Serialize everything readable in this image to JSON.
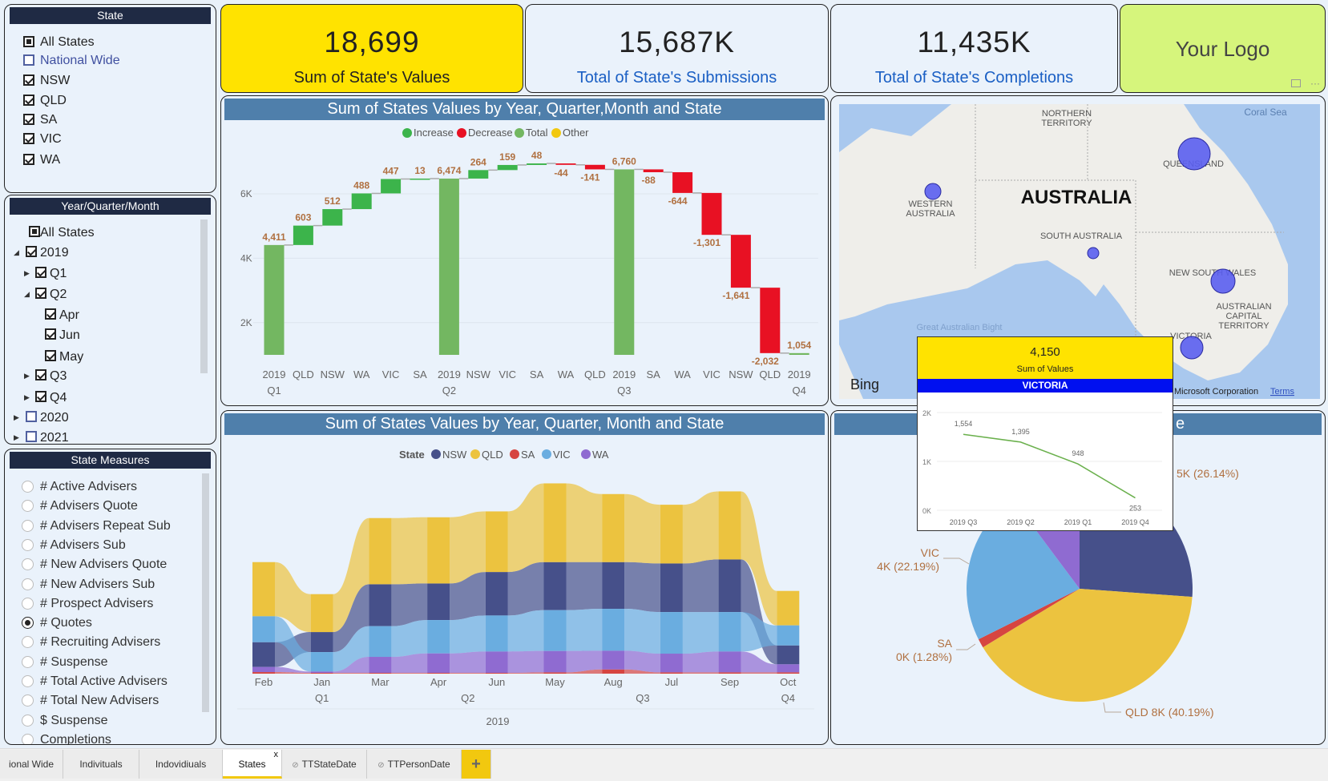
{
  "state_slicer": {
    "title": "State",
    "items": [
      {
        "label": "All States",
        "state": "part"
      },
      {
        "label": "National Wide",
        "state": "empty"
      },
      {
        "label": "NSW",
        "state": "on"
      },
      {
        "label": "QLD",
        "state": "on"
      },
      {
        "label": "SA",
        "state": "on"
      },
      {
        "label": "VIC",
        "state": "on"
      },
      {
        "label": "WA",
        "state": "on"
      }
    ]
  },
  "date_slicer": {
    "title": "Year/Quarter/Month",
    "items": [
      {
        "label": "All States",
        "state": "part",
        "level": 0,
        "arrow": ""
      },
      {
        "label": "2019",
        "state": "on",
        "level": 0,
        "arrow": "◢"
      },
      {
        "label": "Q1",
        "state": "on",
        "level": 1,
        "arrow": "▶"
      },
      {
        "label": "Q2",
        "state": "on",
        "level": 1,
        "arrow": "◢"
      },
      {
        "label": "Apr",
        "state": "on",
        "level": 2,
        "arrow": ""
      },
      {
        "label": "Jun",
        "state": "on",
        "level": 2,
        "arrow": ""
      },
      {
        "label": "May",
        "state": "on",
        "level": 2,
        "arrow": ""
      },
      {
        "label": "Q3",
        "state": "on",
        "level": 1,
        "arrow": "▶"
      },
      {
        "label": "Q4",
        "state": "on",
        "level": 1,
        "arrow": "▶"
      },
      {
        "label": "2020",
        "state": "empty",
        "level": 0,
        "arrow": "▶"
      },
      {
        "label": "2021",
        "state": "empty",
        "level": 0,
        "arrow": "▶"
      }
    ]
  },
  "measures_slicer": {
    "title": "State Measures",
    "selected": "# Quotes",
    "items": [
      "# Active Advisers",
      "# Advisers Quote",
      "# Advisers Repeat Sub",
      "# Advisers Sub",
      "# New Advisers Quote",
      "# New Advisers Sub",
      "# Prospect Advisers",
      "# Quotes",
      "# Recruiting Advisers",
      "# Suspense",
      "# Total Active Advisers",
      "# Total New Advisers",
      "$ Suspense",
      "Completions"
    ]
  },
  "kpis": [
    {
      "value": "18,699",
      "label": "Sum of State's Values",
      "bg": "#ffe300"
    },
    {
      "value": "15,687K",
      "label": "Total of State's Submissions",
      "bg": "#eaf2fb"
    },
    {
      "value": "11,435K",
      "label": "Total of State's Completions",
      "bg": "#eaf2fb"
    }
  ],
  "logo": {
    "text": "Your Logo",
    "bg": "#d6f57c"
  },
  "colors": {
    "increase": "#3cb44b",
    "decrease": "#e81123",
    "total": "#73b761",
    "other": "#f2c80f",
    "header": "#4f7fab",
    "nsw": "#46508a",
    "qld": "#ecc33f",
    "sa": "#d64541",
    "vic": "#6aade0",
    "wa": "#8f6bd1"
  },
  "chart_data": [
    {
      "type": "waterfall",
      "title": "Sum of States Values by Year, Quarter,Month and State",
      "legend": [
        "Increase",
        "Decrease",
        "Total",
        "Other"
      ],
      "yticks": [
        "2K",
        "4K",
        "6K"
      ],
      "ylim": [
        1000,
        7000
      ],
      "categories": [
        {
          "label": "2019",
          "sub": "Q1",
          "kind": "total",
          "value": 4411,
          "text": "4,411"
        },
        {
          "label": "QLD",
          "kind": "delta",
          "value": 603,
          "text": "603"
        },
        {
          "label": "NSW",
          "kind": "delta",
          "value": 512,
          "text": "512"
        },
        {
          "label": "WA",
          "kind": "delta",
          "value": 488,
          "text": "488"
        },
        {
          "label": "VIC",
          "kind": "delta",
          "value": 447,
          "text": "447"
        },
        {
          "label": "SA",
          "kind": "delta",
          "value": 13,
          "text": "13"
        },
        {
          "label": "2019",
          "sub": "Q2",
          "kind": "total",
          "value": 6474,
          "text": "6,474"
        },
        {
          "label": "NSW",
          "kind": "delta",
          "value": 264,
          "text": "264"
        },
        {
          "label": "VIC",
          "kind": "delta",
          "value": 159,
          "text": "159"
        },
        {
          "label": "SA",
          "kind": "delta",
          "value": 48,
          "text": "48"
        },
        {
          "label": "WA",
          "kind": "delta",
          "value": -44,
          "text": "-44"
        },
        {
          "label": "QLD",
          "kind": "delta",
          "value": -141,
          "text": "-141"
        },
        {
          "label": "2019",
          "sub": "Q3",
          "kind": "total",
          "value": 6760,
          "text": "6,760"
        },
        {
          "label": "SA",
          "kind": "delta",
          "value": -88,
          "text": "-88"
        },
        {
          "label": "WA",
          "kind": "delta",
          "value": -644,
          "text": "-644"
        },
        {
          "label": "VIC",
          "kind": "delta",
          "value": -1301,
          "text": "-1,301"
        },
        {
          "label": "NSW",
          "kind": "delta",
          "value": -1641,
          "text": "-1,641"
        },
        {
          "label": "QLD",
          "kind": "delta",
          "value": -2032,
          "text": "-2,032"
        },
        {
          "label": "2019",
          "sub": "Q4",
          "kind": "total",
          "value": 1054,
          "text": "1,054"
        }
      ]
    },
    {
      "type": "ribbon",
      "title": "Sum of States Values by Year, Quarter, Month and State",
      "legend_title": "State",
      "series_names": [
        "NSW",
        "QLD",
        "SA",
        "VIC",
        "WA"
      ],
      "categories": [
        "Feb",
        "Jan",
        "Mar",
        "Apr",
        "Jun",
        "May",
        "Aug",
        "Jul",
        "Sep",
        "Oct"
      ],
      "quarters": [
        {
          "label": "Q1",
          "at": 1
        },
        {
          "label": "Q2",
          "at": 4
        },
        {
          "label": "Q3",
          "at": 7
        },
        {
          "label": "Q4",
          "at": 9
        }
      ],
      "year": "2019",
      "series": [
        {
          "name": "NSW",
          "values": [
            316,
            255,
            534,
            466,
            554,
            612,
            595,
            619,
            670,
            241
          ]
        },
        {
          "name": "QLD",
          "values": [
            690,
            483,
            843,
            843,
            772,
            1003,
            867,
            748,
            867,
            439
          ]
        },
        {
          "name": "SA",
          "values": [
            20,
            10,
            10,
            10,
            10,
            17,
            54,
            17,
            17,
            17
          ]
        },
        {
          "name": "VIC",
          "values": [
            330,
            248,
            391,
            425,
            459,
            520,
            534,
            530,
            503,
            255
          ]
        },
        {
          "name": "WA",
          "values": [
            65,
            17,
            204,
            248,
            272,
            272,
            238,
            238,
            265,
            102
          ]
        }
      ]
    },
    {
      "type": "pie",
      "title_visible": "e",
      "slices": [
        {
          "name": "NSW",
          "percent": 26.14,
          "label": "5K (26.14%)"
        },
        {
          "name": "QLD",
          "percent": 40.19,
          "label": "QLD 8K (40.19%)"
        },
        {
          "name": "SA",
          "percent": 1.28,
          "label": "0K (1.28%)"
        },
        {
          "name": "VIC",
          "percent": 22.19,
          "label": "4K (22.19%)"
        },
        {
          "name": "WA",
          "percent": 10.2,
          "label": ""
        }
      ]
    },
    {
      "type": "line",
      "tooltip_value": "4,150",
      "tooltip_label": "Sum of Values",
      "tooltip_state": "VICTORIA",
      "categories": [
        "2019 Q3",
        "2019 Q2",
        "2019 Q1",
        "2019 Q4"
      ],
      "values": [
        1554,
        1395,
        948,
        253
      ],
      "value_labels": [
        "1,554",
        "1,395",
        "948",
        "253"
      ],
      "yticks": [
        "0K",
        "1K",
        "2K"
      ],
      "ylim": [
        0,
        2000
      ]
    }
  ],
  "map": {
    "title": "AUSTRALIA",
    "labels": {
      "nt": "NORTHERN TERRITORY",
      "wa": "WESTERN AUSTRALIA",
      "sa": "SOUTH AUSTRALIA",
      "qld": "QUEENSLAND",
      "nsw": "NEW SOUTH WALES",
      "act": "AUSTRALIAN CAPITAL TERRITORY",
      "vic": "VICTORIA",
      "sea": "Coral Sea",
      "bight": "Great Australian Bight"
    },
    "attribution": "Microsoft Corporation",
    "terms": "Terms",
    "provider": "Bing"
  },
  "tabs": [
    {
      "label": "ional Wide"
    },
    {
      "label": "Indivituals"
    },
    {
      "label": "Indovidiuals"
    },
    {
      "label": "States",
      "active": true
    },
    {
      "label": "TTStateDate",
      "hidden": true
    },
    {
      "label": "TTPersonDate",
      "hidden": true
    }
  ],
  "add_tab": "+",
  "close_tab": "x"
}
